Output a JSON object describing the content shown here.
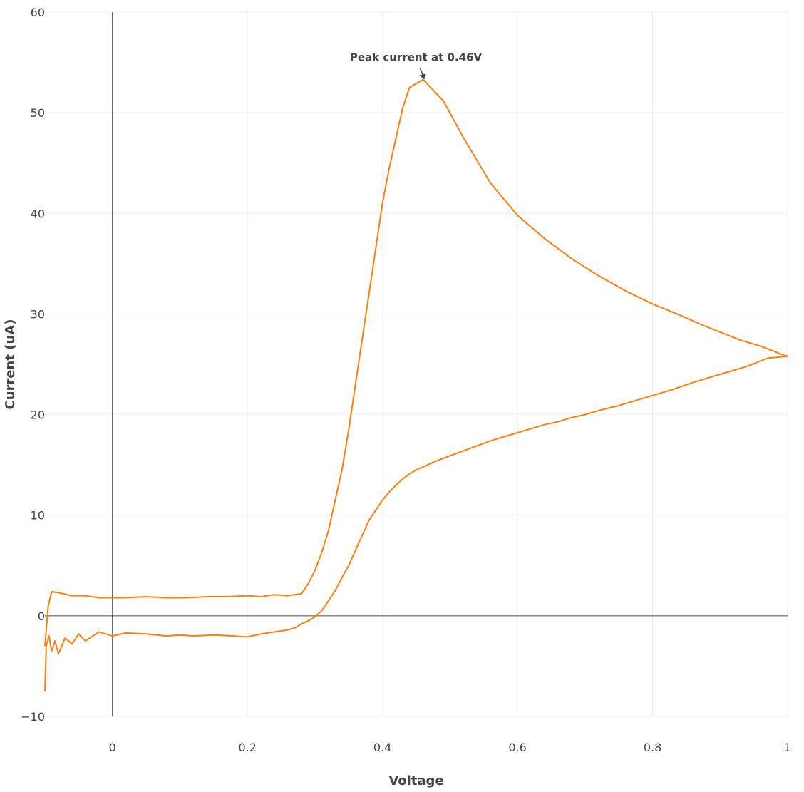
{
  "chart_data": {
    "type": "line",
    "title": "",
    "xlabel": "Voltage",
    "ylabel": "Current (uA)",
    "xlim": [
      -0.1,
      1.0
    ],
    "ylim": [
      -10,
      60
    ],
    "x_ticks": [
      0,
      0.2,
      0.4,
      0.6,
      0.8,
      1.0
    ],
    "x_tick_labels": [
      "0",
      "0.2",
      "0.4",
      "0.6",
      "0.8",
      "1"
    ],
    "y_ticks": [
      -10,
      0,
      10,
      20,
      30,
      40,
      50,
      60
    ],
    "y_tick_labels": [
      "−10",
      "0",
      "10",
      "20",
      "30",
      "40",
      "50",
      "60"
    ],
    "grid": true,
    "legend": "none",
    "series": [
      {
        "color": "#ff7f0e",
        "x": [
          -0.1,
          -0.098,
          -0.094,
          -0.09,
          -0.085,
          -0.08,
          -0.07,
          -0.06,
          -0.05,
          -0.04,
          -0.02,
          0.0,
          0.02,
          0.05,
          0.08,
          0.1,
          0.12,
          0.15,
          0.18,
          0.2,
          0.22,
          0.24,
          0.25,
          0.26,
          0.27,
          0.28,
          0.29,
          0.3,
          0.31,
          0.32,
          0.33,
          0.34,
          0.35,
          0.36,
          0.37,
          0.38,
          0.39,
          0.4,
          0.41,
          0.42,
          0.43,
          0.44,
          0.45,
          0.46,
          0.47,
          0.48,
          0.5,
          0.52,
          0.54,
          0.56,
          0.58,
          0.6,
          0.62,
          0.64,
          0.66,
          0.68,
          0.7,
          0.72,
          0.75,
          0.78,
          0.8,
          0.83,
          0.86,
          0.9,
          0.94,
          0.97,
          1.0,
          0.99,
          0.98,
          0.96,
          0.93,
          0.9,
          0.87,
          0.84,
          0.8,
          0.76,
          0.72,
          0.68,
          0.64,
          0.6,
          0.56,
          0.52,
          0.49,
          0.46,
          0.44,
          0.43,
          0.42,
          0.41,
          0.4,
          0.39,
          0.38,
          0.37,
          0.36,
          0.35,
          0.34,
          0.33,
          0.32,
          0.31,
          0.3,
          0.29,
          0.28,
          0.26,
          0.24,
          0.22,
          0.2,
          0.17,
          0.14,
          0.11,
          0.08,
          0.05,
          0.02,
          0.0,
          -0.02,
          -0.04,
          -0.06,
          -0.08,
          -0.09,
          -0.095,
          -0.1
        ],
        "y": [
          -7.5,
          -3.0,
          -2.0,
          -3.5,
          -2.5,
          -3.8,
          -2.2,
          -2.8,
          -1.8,
          -2.5,
          -1.6,
          -2.0,
          -1.7,
          -1.8,
          -2.0,
          -1.9,
          -2.0,
          -1.9,
          -2.0,
          -2.1,
          -1.8,
          -1.6,
          -1.5,
          -1.4,
          -1.2,
          -0.8,
          -0.5,
          -0.1,
          0.5,
          1.5,
          2.5,
          3.8,
          5.0,
          6.5,
          8.0,
          9.5,
          10.5,
          11.5,
          12.3,
          13.0,
          13.6,
          14.1,
          14.5,
          14.8,
          15.1,
          15.4,
          15.9,
          16.4,
          16.9,
          17.4,
          17.8,
          18.2,
          18.6,
          19.0,
          19.3,
          19.7,
          20.0,
          20.4,
          20.9,
          21.5,
          21.9,
          22.5,
          23.2,
          24.0,
          24.8,
          25.6,
          25.8,
          26.0,
          26.3,
          26.8,
          27.4,
          28.2,
          29.0,
          29.9,
          31.0,
          32.3,
          33.8,
          35.5,
          37.5,
          39.8,
          43.0,
          47.5,
          51.2,
          53.3,
          52.5,
          50.5,
          47.5,
          44.5,
          41.0,
          36.5,
          32.0,
          27.5,
          23.0,
          18.5,
          14.5,
          11.5,
          8.5,
          6.3,
          4.5,
          3.2,
          2.2,
          2.0,
          2.1,
          1.9,
          2.0,
          1.9,
          1.9,
          1.8,
          1.8,
          1.9,
          1.8,
          1.8,
          1.8,
          2.0,
          2.0,
          2.3,
          2.4,
          1.0,
          -3.0
        ]
      }
    ],
    "annotations": [
      {
        "text": "Peak current at 0.46V",
        "x": 0.46,
        "y": 53.3
      }
    ]
  }
}
